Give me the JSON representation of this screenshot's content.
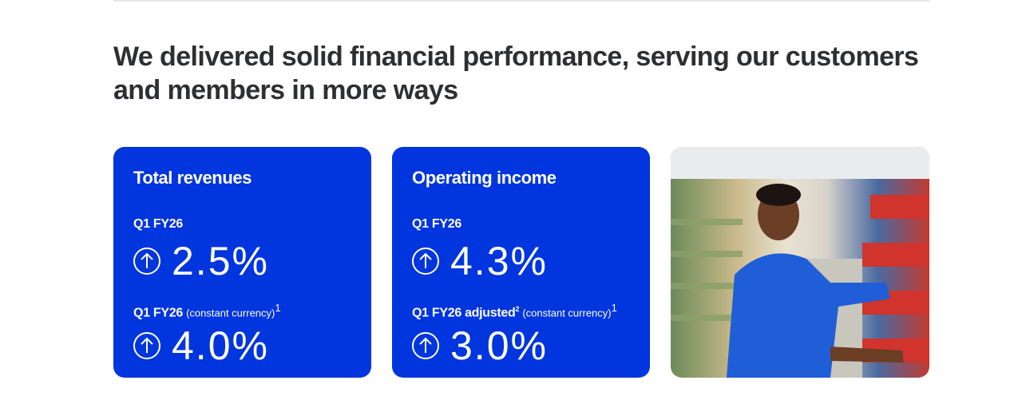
{
  "heading": "We delivered solid financial performance, serving our customers and members in more ways",
  "cards": [
    {
      "title": "Total revenues",
      "metrics": [
        {
          "label": "Q1 FY26",
          "label_sup": "",
          "sub": "",
          "sub_sup": "",
          "icon": "arrow-up-circle-icon",
          "value": "2.5%"
        },
        {
          "label": "Q1 FY26",
          "label_sup": "",
          "sub": "(constant currency)",
          "sub_sup": "1",
          "icon": "arrow-up-circle-icon",
          "value": "4.0%"
        }
      ]
    },
    {
      "title": "Operating income",
      "metrics": [
        {
          "label": "Q1 FY26",
          "label_sup": "",
          "sub": "",
          "sub_sup": "",
          "icon": "arrow-up-circle-icon",
          "value": "4.3%"
        },
        {
          "label": "Q1 FY26 adjusted",
          "label_sup": "2",
          "sub": "(constant currency)",
          "sub_sup": "1",
          "icon": "arrow-up-circle-icon",
          "value": "3.0%"
        }
      ]
    }
  ],
  "colors": {
    "card_bg": "#0135de",
    "heading": "#2e2f32"
  }
}
